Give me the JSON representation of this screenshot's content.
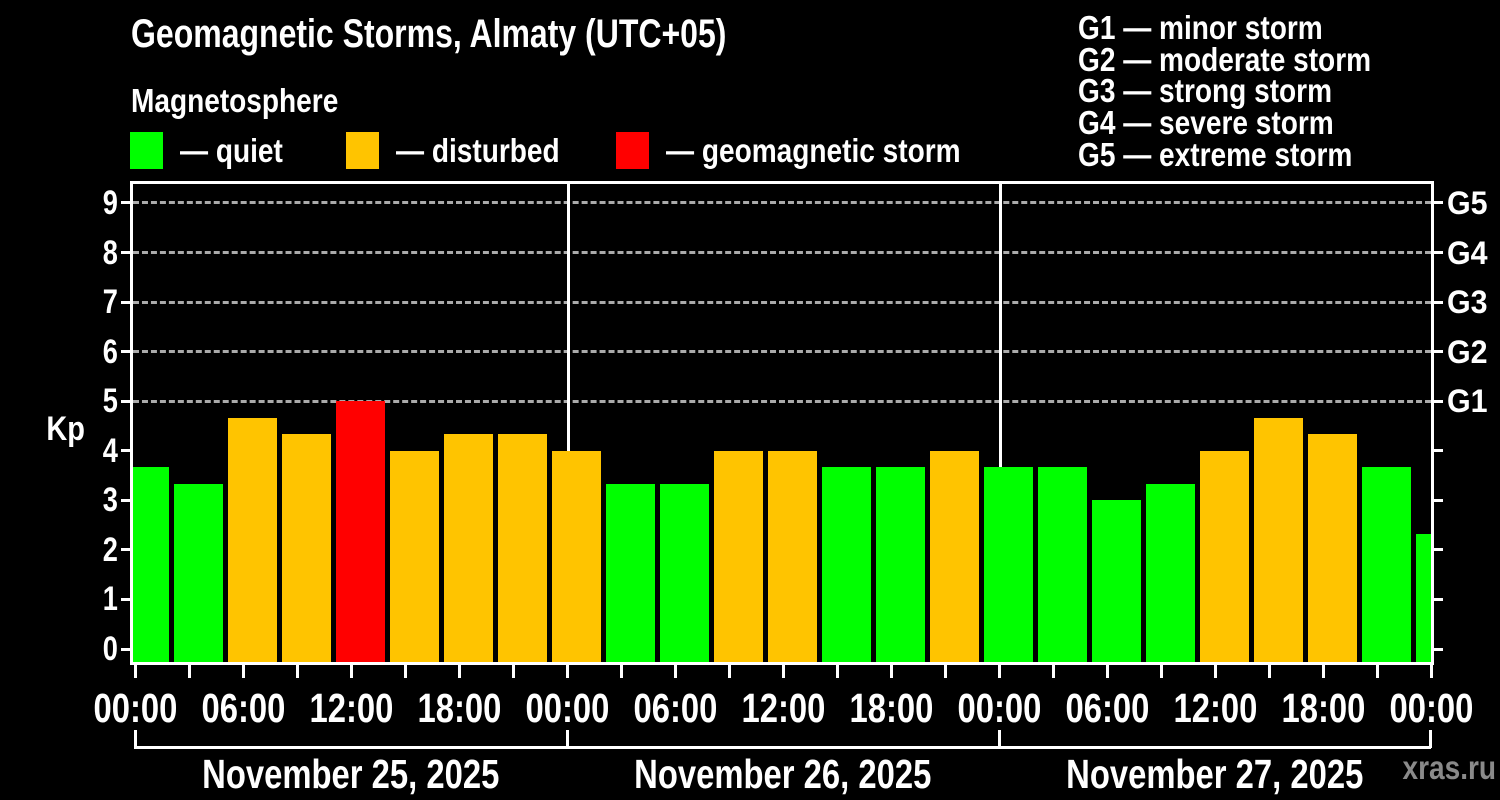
{
  "header": {
    "title": "Geomagnetic Storms, Almaty (UTC+05)",
    "subtitle": "Magnetosphere"
  },
  "legend": {
    "items": [
      {
        "label": "— quiet",
        "color_key": "quiet"
      },
      {
        "label": "— disturbed",
        "color_key": "disturbed"
      },
      {
        "label": "— geomagnetic storm",
        "color_key": "storm"
      }
    ]
  },
  "g_legend": {
    "items": [
      {
        "label": "G1 — minor storm"
      },
      {
        "label": "G2 — moderate storm"
      },
      {
        "label": "G3 — strong storm"
      },
      {
        "label": "G4 — severe storm"
      },
      {
        "label": "G5 — extreme storm"
      }
    ]
  },
  "y_axis": {
    "label": "Kp",
    "ticks": [
      "0",
      "1",
      "2",
      "3",
      "4",
      "5",
      "6",
      "7",
      "8",
      "9"
    ]
  },
  "right_axis": {
    "labels": [
      "G1",
      "G2",
      "G3",
      "G4",
      "G5"
    ],
    "kp_positions": [
      5,
      6,
      7,
      8,
      9
    ]
  },
  "x_axis": {
    "time_labels": [
      "00:00",
      "06:00",
      "12:00",
      "18:00",
      "00:00",
      "06:00",
      "12:00",
      "18:00",
      "00:00",
      "06:00",
      "12:00",
      "18:00",
      "00:00"
    ],
    "day_labels": [
      "November 25, 2025",
      "November 26, 2025",
      "November 27, 2025"
    ]
  },
  "watermark": "xras.ru",
  "colors": {
    "background": "#000000",
    "text": "#ffffff",
    "axis": "#ffffff",
    "grid": "#aaaaaa",
    "quiet": "#00ff00",
    "disturbed": "#ffc400",
    "storm": "#ff0000",
    "watermark": "#8a8a8a"
  },
  "chart_data": {
    "type": "bar",
    "title": "Geomagnetic Storms, Almaty (UTC+05)",
    "subtitle": "Magnetosphere",
    "ylabel": "Kp",
    "ylim": [
      0,
      9.5
    ],
    "grid_kp_levels": [
      5,
      6,
      7,
      8,
      9
    ],
    "interval_hours": 3,
    "days": [
      "November 25, 2025",
      "November 26, 2025",
      "November 27, 2025"
    ],
    "values": [
      3.67,
      3.33,
      4.67,
      4.33,
      5,
      4,
      4.33,
      4.33,
      4,
      3.33,
      3.33,
      4,
      4,
      3.67,
      3.67,
      4,
      3.67,
      3.67,
      3,
      3.33,
      4,
      4.67,
      4.33,
      3.67,
      2.33
    ],
    "statuses": [
      "quiet",
      "quiet",
      "disturbed",
      "disturbed",
      "storm",
      "disturbed",
      "disturbed",
      "disturbed",
      "disturbed",
      "quiet",
      "quiet",
      "disturbed",
      "disturbed",
      "quiet",
      "quiet",
      "disturbed",
      "quiet",
      "quiet",
      "quiet",
      "quiet",
      "disturbed",
      "disturbed",
      "disturbed",
      "quiet",
      "quiet"
    ],
    "status_thresholds": {
      "disturbed_at": 4,
      "storm_at": 5
    }
  }
}
